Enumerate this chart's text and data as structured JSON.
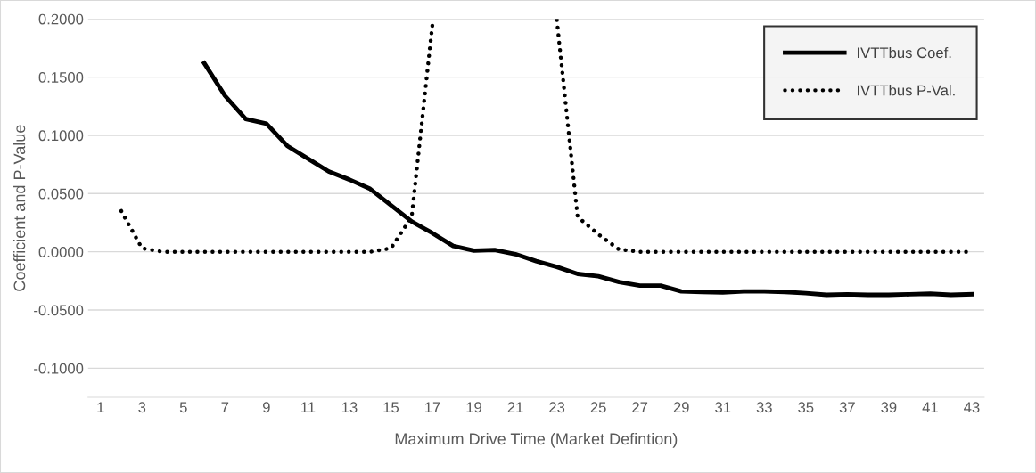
{
  "chart_data": {
    "type": "line",
    "xlabel": "Maximum Drive Time (Market Defintion)",
    "ylabel": "Coefficient and P-Value",
    "categories": [
      "1",
      null,
      "3",
      null,
      "5",
      null,
      "7",
      null,
      "9",
      null,
      "11",
      null,
      "13",
      null,
      "15",
      null,
      "17",
      null,
      "19",
      null,
      "21",
      null,
      "23",
      null,
      "25",
      null,
      "27",
      null,
      "29",
      null,
      "31",
      null,
      "33",
      null,
      "35",
      null,
      "37",
      null,
      "39",
      null,
      "41",
      null,
      "43"
    ],
    "series": [
      {
        "name": "IVTTbus Coef.",
        "color": "#000000",
        "line_style": "solid",
        "values": [
          null,
          null,
          null,
          null,
          null,
          0.162,
          0.134,
          0.114,
          0.11,
          0.091,
          0.08,
          0.069,
          0.062,
          0.054,
          0.04,
          0.026,
          0.016,
          0.005,
          0.001,
          0.0015,
          -0.002,
          -0.008,
          -0.013,
          -0.019,
          -0.021,
          -0.026,
          -0.029,
          -0.029,
          -0.034,
          -0.0345,
          -0.035,
          -0.034,
          -0.034,
          -0.0345,
          -0.0355,
          -0.037,
          -0.0365,
          -0.037,
          -0.037,
          -0.0365,
          -0.036,
          -0.037,
          -0.0365
        ]
      },
      {
        "name": "IVTTbus P-Val.",
        "color": "#000000",
        "line_style": "dotted",
        "values": [
          null,
          0.035,
          0.003,
          0,
          0,
          0,
          0,
          0,
          0,
          0,
          0,
          0,
          0,
          0,
          0.003,
          0.03,
          0.195,
          null,
          null,
          null,
          null,
          null,
          0.199,
          0.03,
          0.015,
          0.002,
          0,
          0,
          0,
          0,
          0,
          0,
          0,
          0,
          0,
          0,
          0,
          0,
          0,
          0,
          0,
          0,
          0
        ]
      }
    ],
    "ylim": [
      -0.125,
      0.2
    ],
    "yticks": [
      {
        "value": -0.1,
        "label": "-0.1000"
      },
      {
        "value": -0.05,
        "label": "-0.0500"
      },
      {
        "value": 0,
        "label": "0.0000"
      },
      {
        "value": 0.05,
        "label": "0.0500"
      },
      {
        "value": 0.1,
        "label": "0.1000"
      },
      {
        "value": 0.15,
        "label": "0.1500"
      },
      {
        "value": 0.2,
        "label": "0.2000"
      }
    ],
    "grid": "y",
    "legend": "top right",
    "marker": "none"
  }
}
